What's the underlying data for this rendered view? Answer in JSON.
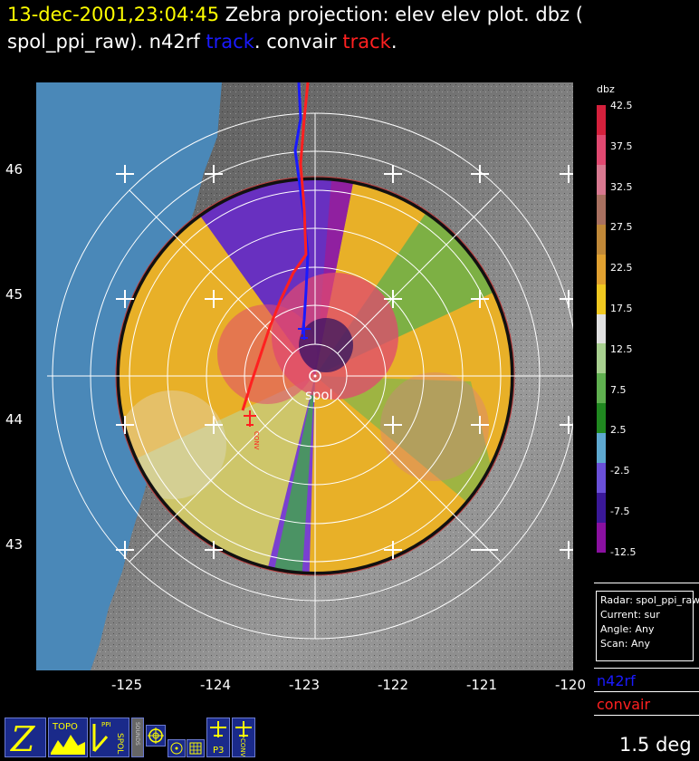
{
  "header": {
    "timestamp": "13-dec-2001,23:04:45",
    "line1_rest": "Zebra projection: elev elev  plot.  dbz (",
    "line2_a": "spol_ppi_raw).   n42rf ",
    "track_word_1": "track",
    "line2_b": ".   convair ",
    "track_word_2": "track",
    "line2_c": "."
  },
  "map": {
    "lat_labels": [
      "46",
      "45",
      "44",
      "43"
    ],
    "lon_labels": [
      "-125",
      "-124",
      "-123",
      "-122",
      "-121",
      "-120"
    ],
    "radar_label": "spol",
    "aircraft_label": "CONV"
  },
  "colorbar": {
    "unit": "dbz",
    "ticks": [
      "42.5",
      "37.5",
      "32.5",
      "27.5",
      "22.5",
      "17.5",
      "12.5",
      "7.5",
      "2.5",
      "-2.5",
      "-7.5",
      "-12.5"
    ],
    "colors": [
      "#d4203c",
      "#e04870",
      "#d87890",
      "#a87060",
      "#c08838",
      "#e0a030",
      "#f0c820",
      "#e0e0e0",
      "#a8d090",
      "#60b050",
      "#208820",
      "#5ea8d0",
      "#6a50d8",
      "#3a1898",
      "#8a10a0"
    ]
  },
  "info": {
    "radar": "Radar: spol_ppi_raw",
    "current": "Current: sur",
    "angle": "Angle: Any",
    "scan": "Scan: Any"
  },
  "tracks": {
    "aircraft1": "n42rf",
    "aircraft2": "convair",
    "aircraft1_color": "#1a1aff",
    "aircraft2_color": "#ff2020"
  },
  "elevation": "1.5 deg",
  "iconbar": {
    "zebra_icon": "Z",
    "topo_label": "TOPO",
    "ppi_label": "PPI",
    "spol_label": "SPOL",
    "sounds_label": "SOUNDS",
    "p3_label": "P3",
    "conv_label": "CONV"
  }
}
